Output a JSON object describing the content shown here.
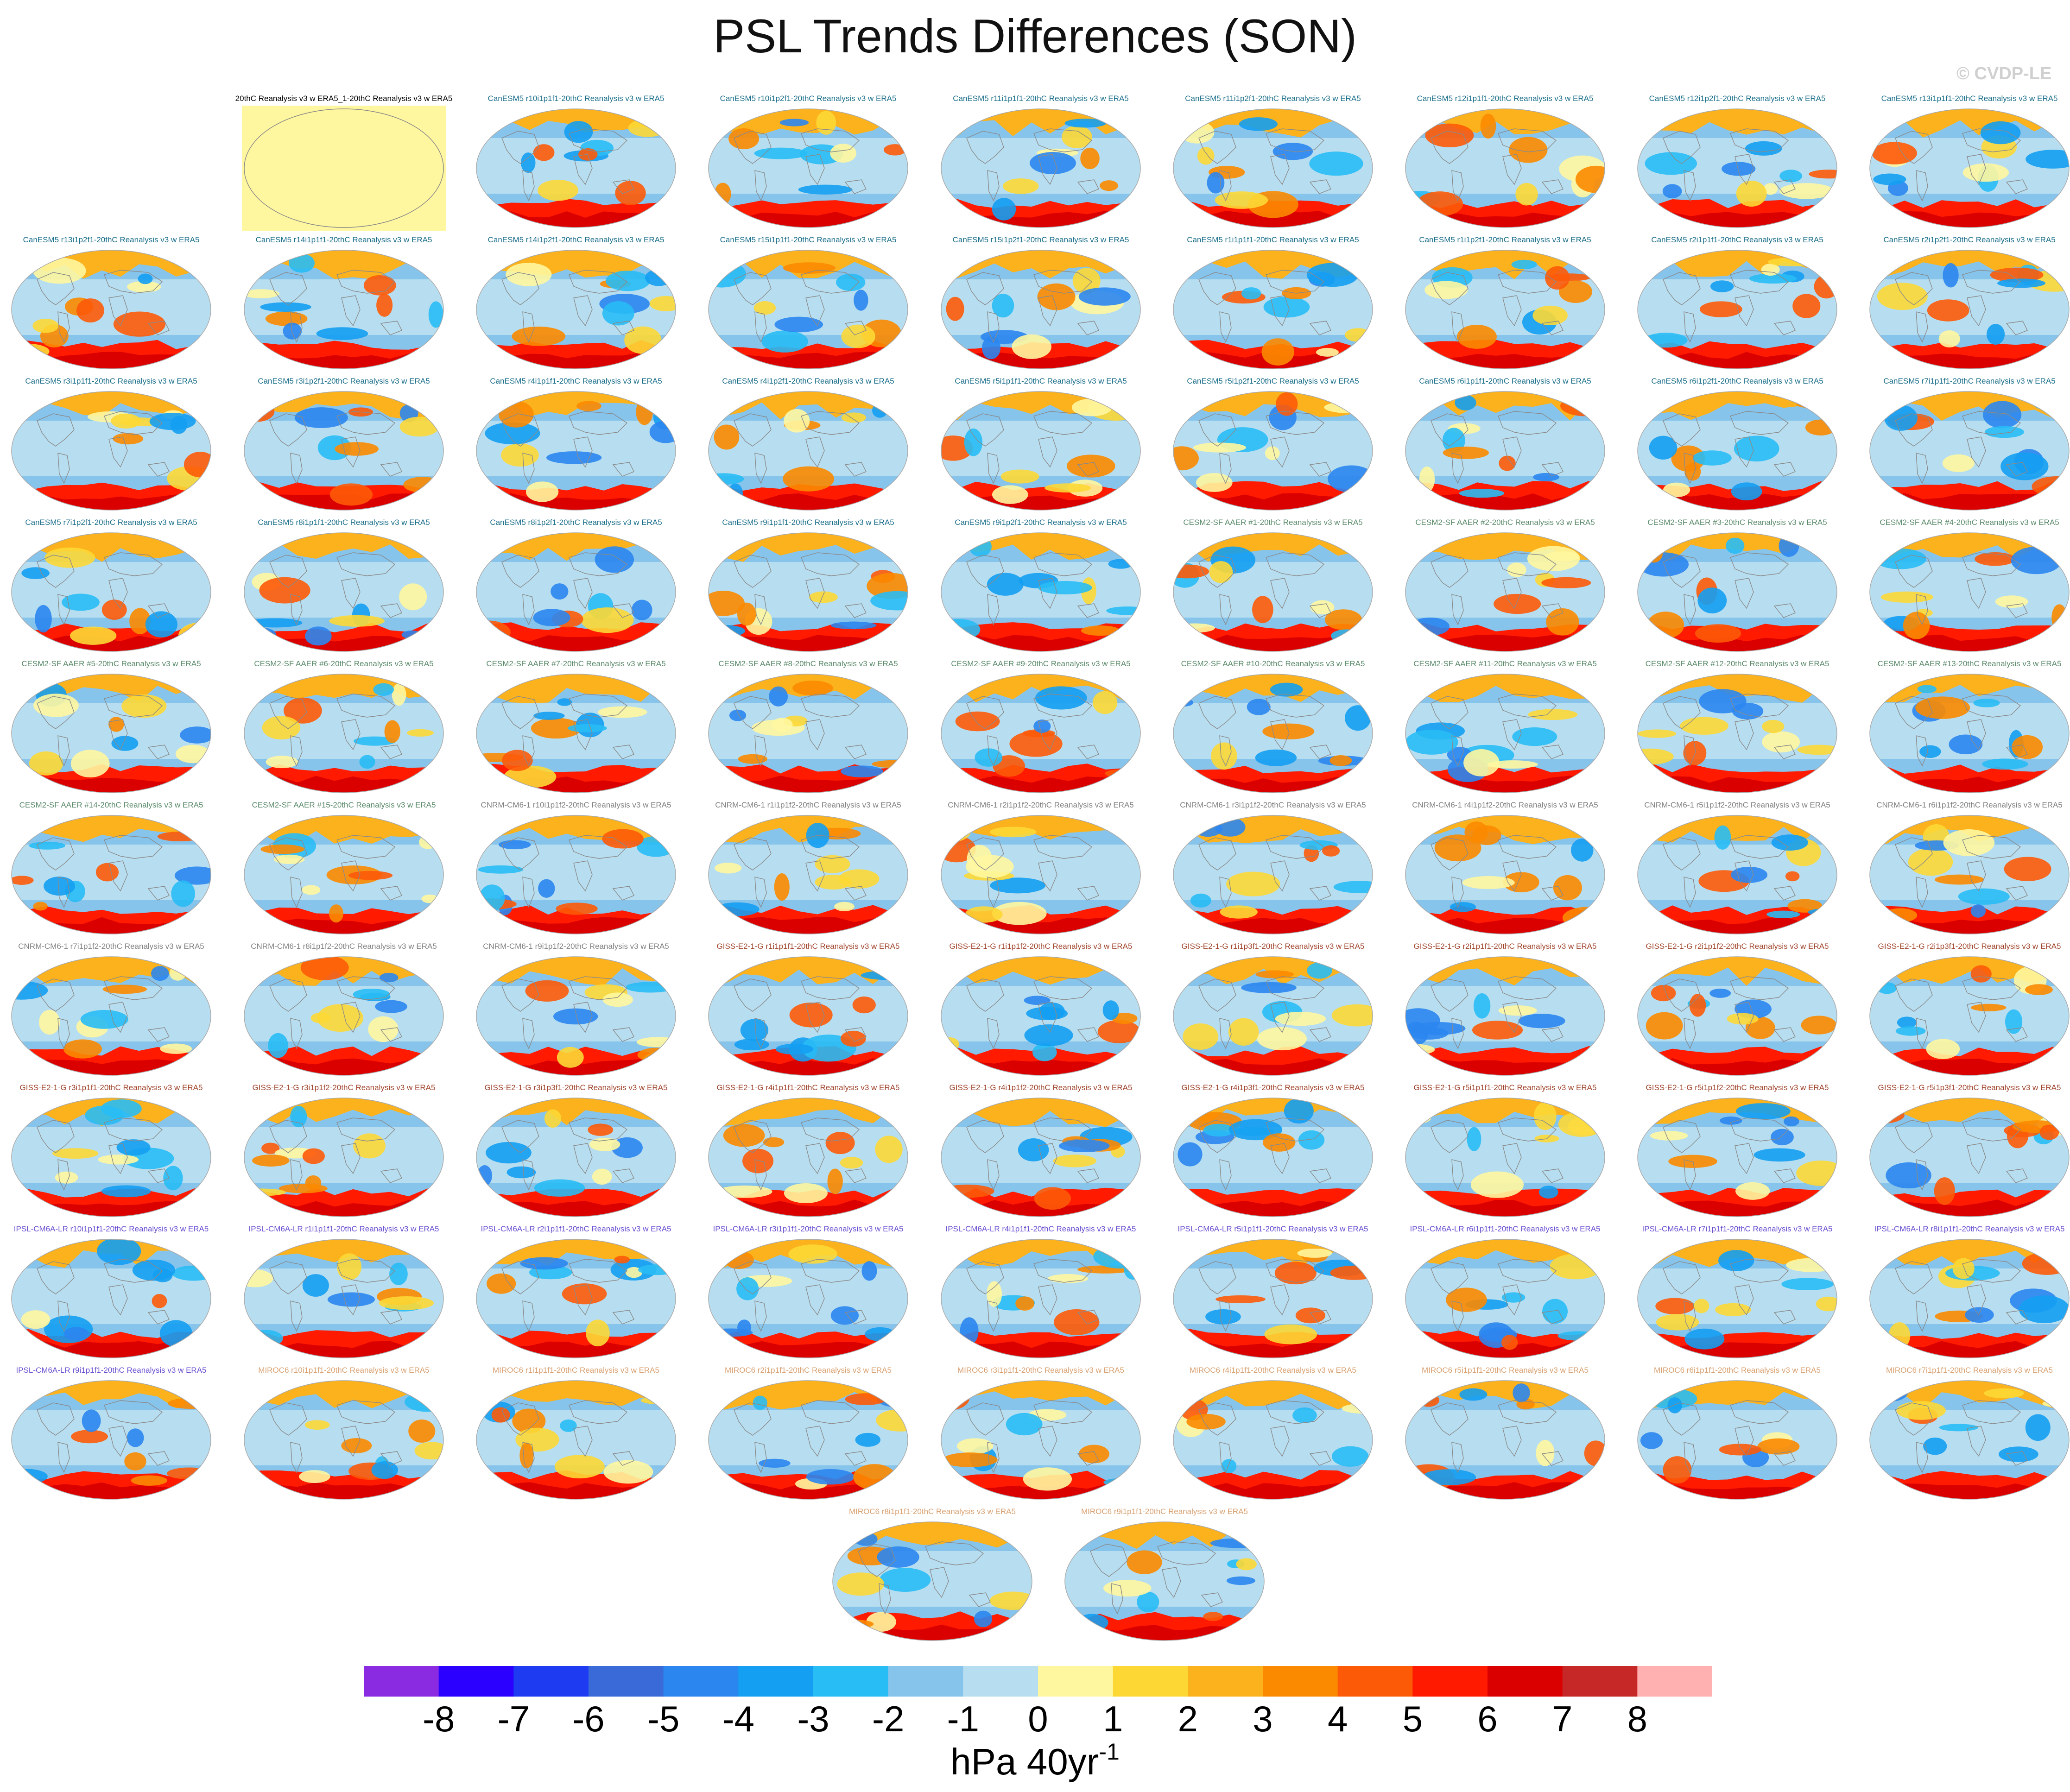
{
  "figure": {
    "title": "PSL Trends Differences (SON)",
    "watermark": "© CVDP-LE",
    "colorbar": {
      "unit_main": "hPa 40yr",
      "unit_exp": "-1",
      "ticks": [
        "-8",
        "-7",
        "-6",
        "-5",
        "-4",
        "-3",
        "-2",
        "-1",
        "0",
        "1",
        "2",
        "3",
        "4",
        "5",
        "6",
        "7",
        "8"
      ],
      "colors": [
        "#8a2be2",
        "#2b00ff",
        "#1f3bf2",
        "#3a6ad8",
        "#2b86f0",
        "#149ff2",
        "#28bdf5",
        "#86c4ec",
        "#b7def0",
        "#fff7a0",
        "#fdd835",
        "#fbb21c",
        "#fb8a00",
        "#fd5a08",
        "#ff1a00",
        "#db0000",
        "#c62828",
        "#ffb0b0"
      ]
    },
    "panels": [
      {
        "label": "20thC Reanalysis v3 w ERA5_1-20thC Reanalysis v3 w ERA5",
        "group": "ref",
        "color": "#000000"
      },
      {
        "label": "CanESM5 r10i1p1f1-20thC Reanalysis v3 w ERA5",
        "group": "CanESM5",
        "color": "#1a6e8a"
      },
      {
        "label": "CanESM5 r10i1p2f1-20thC Reanalysis v3 w ERA5",
        "group": "CanESM5",
        "color": "#1a6e8a"
      },
      {
        "label": "CanESM5 r11i1p1f1-20thC Reanalysis v3 w ERA5",
        "group": "CanESM5",
        "color": "#1a6e8a"
      },
      {
        "label": "CanESM5 r11i1p2f1-20thC Reanalysis v3 w ERA5",
        "group": "CanESM5",
        "color": "#1a6e8a"
      },
      {
        "label": "CanESM5 r12i1p1f1-20thC Reanalysis v3 w ERA5",
        "group": "CanESM5",
        "color": "#1a6e8a"
      },
      {
        "label": "CanESM5 r12i1p2f1-20thC Reanalysis v3 w ERA5",
        "group": "CanESM5",
        "color": "#1a6e8a"
      },
      {
        "label": "CanESM5 r13i1p1f1-20thC Reanalysis v3 w ERA5",
        "group": "CanESM5",
        "color": "#1a6e8a"
      },
      {
        "label": "CanESM5 r13i1p2f1-20thC Reanalysis v3 w ERA5",
        "group": "CanESM5",
        "color": "#1a6e8a"
      },
      {
        "label": "CanESM5 r14i1p1f1-20thC Reanalysis v3 w ERA5",
        "group": "CanESM5",
        "color": "#1a6e8a"
      },
      {
        "label": "CanESM5 r14i1p2f1-20thC Reanalysis v3 w ERA5",
        "group": "CanESM5",
        "color": "#1a6e8a"
      },
      {
        "label": "CanESM5 r15i1p1f1-20thC Reanalysis v3 w ERA5",
        "group": "CanESM5",
        "color": "#1a6e8a"
      },
      {
        "label": "CanESM5 r15i1p2f1-20thC Reanalysis v3 w ERA5",
        "group": "CanESM5",
        "color": "#1a6e8a"
      },
      {
        "label": "CanESM5 r1i1p1f1-20thC Reanalysis v3 w ERA5",
        "group": "CanESM5",
        "color": "#1a6e8a"
      },
      {
        "label": "CanESM5 r1i1p2f1-20thC Reanalysis v3 w ERA5",
        "group": "CanESM5",
        "color": "#1a6e8a"
      },
      {
        "label": "CanESM5 r2i1p1f1-20thC Reanalysis v3 w ERA5",
        "group": "CanESM5",
        "color": "#1a6e8a"
      },
      {
        "label": "CanESM5 r2i1p2f1-20thC Reanalysis v3 w ERA5",
        "group": "CanESM5",
        "color": "#1a6e8a"
      },
      {
        "label": "CanESM5 r3i1p1f1-20thC Reanalysis v3 w ERA5",
        "group": "CanESM5",
        "color": "#1a6e8a"
      },
      {
        "label": "CanESM5 r3i1p2f1-20thC Reanalysis v3 w ERA5",
        "group": "CanESM5",
        "color": "#1a6e8a"
      },
      {
        "label": "CanESM5 r4i1p1f1-20thC Reanalysis v3 w ERA5",
        "group": "CanESM5",
        "color": "#1a6e8a"
      },
      {
        "label": "CanESM5 r4i1p2f1-20thC Reanalysis v3 w ERA5",
        "group": "CanESM5",
        "color": "#1a6e8a"
      },
      {
        "label": "CanESM5 r5i1p1f1-20thC Reanalysis v3 w ERA5",
        "group": "CanESM5",
        "color": "#1a6e8a"
      },
      {
        "label": "CanESM5 r5i1p2f1-20thC Reanalysis v3 w ERA5",
        "group": "CanESM5",
        "color": "#1a6e8a"
      },
      {
        "label": "CanESM5 r6i1p1f1-20thC Reanalysis v3 w ERA5",
        "group": "CanESM5",
        "color": "#1a6e8a"
      },
      {
        "label": "CanESM5 r6i1p2f1-20thC Reanalysis v3 w ERA5",
        "group": "CanESM5",
        "color": "#1a6e8a"
      },
      {
        "label": "CanESM5 r7i1p1f1-20thC Reanalysis v3 w ERA5",
        "group": "CanESM5",
        "color": "#1a6e8a"
      },
      {
        "label": "CanESM5 r7i1p2f1-20thC Reanalysis v3 w ERA5",
        "group": "CanESM5",
        "color": "#1a6e8a"
      },
      {
        "label": "CanESM5 r8i1p1f1-20thC Reanalysis v3 w ERA5",
        "group": "CanESM5",
        "color": "#1a6e8a"
      },
      {
        "label": "CanESM5 r8i1p2f1-20thC Reanalysis v3 w ERA5",
        "group": "CanESM5",
        "color": "#1a6e8a"
      },
      {
        "label": "CanESM5 r9i1p1f1-20thC Reanalysis v3 w ERA5",
        "group": "CanESM5",
        "color": "#1a6e8a"
      },
      {
        "label": "CanESM5 r9i1p2f1-20thC Reanalysis v3 w ERA5",
        "group": "CanESM5",
        "color": "#1a6e8a"
      },
      {
        "label": "CESM2-SF AAER #1-20thC Reanalysis v3 w ERA5",
        "group": "CESM2",
        "color": "#5a8a6a"
      },
      {
        "label": "CESM2-SF AAER #2-20thC Reanalysis v3 w ERA5",
        "group": "CESM2",
        "color": "#5a8a6a"
      },
      {
        "label": "CESM2-SF AAER #3-20thC Reanalysis v3 w ERA5",
        "group": "CESM2",
        "color": "#5a8a6a"
      },
      {
        "label": "CESM2-SF AAER #4-20thC Reanalysis v3 w ERA5",
        "group": "CESM2",
        "color": "#5a8a6a"
      },
      {
        "label": "CESM2-SF AAER #5-20thC Reanalysis v3 w ERA5",
        "group": "CESM2",
        "color": "#5a8a6a"
      },
      {
        "label": "CESM2-SF AAER #6-20thC Reanalysis v3 w ERA5",
        "group": "CESM2",
        "color": "#5a8a6a"
      },
      {
        "label": "CESM2-SF AAER #7-20thC Reanalysis v3 w ERA5",
        "group": "CESM2",
        "color": "#5a8a6a"
      },
      {
        "label": "CESM2-SF AAER #8-20thC Reanalysis v3 w ERA5",
        "group": "CESM2",
        "color": "#5a8a6a"
      },
      {
        "label": "CESM2-SF AAER #9-20thC Reanalysis v3 w ERA5",
        "group": "CESM2",
        "color": "#5a8a6a"
      },
      {
        "label": "CESM2-SF AAER #10-20thC Reanalysis v3 w ERA5",
        "group": "CESM2",
        "color": "#5a8a6a"
      },
      {
        "label": "CESM2-SF AAER #11-20thC Reanalysis v3 w ERA5",
        "group": "CESM2",
        "color": "#5a8a6a"
      },
      {
        "label": "CESM2-SF AAER #12-20thC Reanalysis v3 w ERA5",
        "group": "CESM2",
        "color": "#5a8a6a"
      },
      {
        "label": "CESM2-SF AAER #13-20thC Reanalysis v3 w ERA5",
        "group": "CESM2",
        "color": "#5a8a6a"
      },
      {
        "label": "CESM2-SF AAER #14-20thC Reanalysis v3 w ERA5",
        "group": "CESM2",
        "color": "#5a8a6a"
      },
      {
        "label": "CESM2-SF AAER #15-20thC Reanalysis v3 w ERA5",
        "group": "CESM2",
        "color": "#5a8a6a"
      },
      {
        "label": "CNRM-CM6-1 r10i1p1f2-20thC Reanalysis v3 w ERA5",
        "group": "CNRM",
        "color": "#808080"
      },
      {
        "label": "CNRM-CM6-1 r1i1p1f2-20thC Reanalysis v3 w ERA5",
        "group": "CNRM",
        "color": "#808080"
      },
      {
        "label": "CNRM-CM6-1 r2i1p1f2-20thC Reanalysis v3 w ERA5",
        "group": "CNRM",
        "color": "#808080"
      },
      {
        "label": "CNRM-CM6-1 r3i1p1f2-20thC Reanalysis v3 w ERA5",
        "group": "CNRM",
        "color": "#808080"
      },
      {
        "label": "CNRM-CM6-1 r4i1p1f2-20thC Reanalysis v3 w ERA5",
        "group": "CNRM",
        "color": "#808080"
      },
      {
        "label": "CNRM-CM6-1 r5i1p1f2-20thC Reanalysis v3 w ERA5",
        "group": "CNRM",
        "color": "#808080"
      },
      {
        "label": "CNRM-CM6-1 r6i1p1f2-20thC Reanalysis v3 w ERA5",
        "group": "CNRM",
        "color": "#808080"
      },
      {
        "label": "CNRM-CM6-1 r7i1p1f2-20thC Reanalysis v3 w ERA5",
        "group": "CNRM",
        "color": "#808080"
      },
      {
        "label": "CNRM-CM6-1 r8i1p1f2-20thC Reanalysis v3 w ERA5",
        "group": "CNRM",
        "color": "#808080"
      },
      {
        "label": "CNRM-CM6-1 r9i1p1f2-20thC Reanalysis v3 w ERA5",
        "group": "CNRM",
        "color": "#808080"
      },
      {
        "label": "GISS-E2-1-G r1i1p1f1-20thC Reanalysis v3 w ERA5",
        "group": "GISS",
        "color": "#a0432a"
      },
      {
        "label": "GISS-E2-1-G r1i1p1f2-20thC Reanalysis v3 w ERA5",
        "group": "GISS",
        "color": "#a0432a"
      },
      {
        "label": "GISS-E2-1-G r1i1p3f1-20thC Reanalysis v3 w ERA5",
        "group": "GISS",
        "color": "#a0432a"
      },
      {
        "label": "GISS-E2-1-G r2i1p1f1-20thC Reanalysis v3 w ERA5",
        "group": "GISS",
        "color": "#a0432a"
      },
      {
        "label": "GISS-E2-1-G r2i1p1f2-20thC Reanalysis v3 w ERA5",
        "group": "GISS",
        "color": "#a0432a"
      },
      {
        "label": "GISS-E2-1-G r2i1p3f1-20thC Reanalysis v3 w ERA5",
        "group": "GISS",
        "color": "#a0432a"
      },
      {
        "label": "GISS-E2-1-G r3i1p1f1-20thC Reanalysis v3 w ERA5",
        "group": "GISS",
        "color": "#a0432a"
      },
      {
        "label": "GISS-E2-1-G r3i1p1f2-20thC Reanalysis v3 w ERA5",
        "group": "GISS",
        "color": "#a0432a"
      },
      {
        "label": "GISS-E2-1-G r3i1p3f1-20thC Reanalysis v3 w ERA5",
        "group": "GISS",
        "color": "#a0432a"
      },
      {
        "label": "GISS-E2-1-G r4i1p1f1-20thC Reanalysis v3 w ERA5",
        "group": "GISS",
        "color": "#a0432a"
      },
      {
        "label": "GISS-E2-1-G r4i1p1f2-20thC Reanalysis v3 w ERA5",
        "group": "GISS",
        "color": "#a0432a"
      },
      {
        "label": "GISS-E2-1-G r4i1p3f1-20thC Reanalysis v3 w ERA5",
        "group": "GISS",
        "color": "#a0432a"
      },
      {
        "label": "GISS-E2-1-G r5i1p1f1-20thC Reanalysis v3 w ERA5",
        "group": "GISS",
        "color": "#a0432a"
      },
      {
        "label": "GISS-E2-1-G r5i1p1f2-20thC Reanalysis v3 w ERA5",
        "group": "GISS",
        "color": "#a0432a"
      },
      {
        "label": "GISS-E2-1-G r5i1p3f1-20thC Reanalysis v3 w ERA5",
        "group": "GISS",
        "color": "#a0432a"
      },
      {
        "label": "IPSL-CM6A-LR r10i1p1f1-20thC Reanalysis v3 w ERA5",
        "group": "IPSL",
        "color": "#6a4fd0"
      },
      {
        "label": "IPSL-CM6A-LR r1i1p1f1-20thC Reanalysis v3 w ERA5",
        "group": "IPSL",
        "color": "#6a4fd0"
      },
      {
        "label": "IPSL-CM6A-LR r2i1p1f1-20thC Reanalysis v3 w ERA5",
        "group": "IPSL",
        "color": "#6a4fd0"
      },
      {
        "label": "IPSL-CM6A-LR r3i1p1f1-20thC Reanalysis v3 w ERA5",
        "group": "IPSL",
        "color": "#6a4fd0"
      },
      {
        "label": "IPSL-CM6A-LR r4i1p1f1-20thC Reanalysis v3 w ERA5",
        "group": "IPSL",
        "color": "#6a4fd0"
      },
      {
        "label": "IPSL-CM6A-LR r5i1p1f1-20thC Reanalysis v3 w ERA5",
        "group": "IPSL",
        "color": "#6a4fd0"
      },
      {
        "label": "IPSL-CM6A-LR r6i1p1f1-20thC Reanalysis v3 w ERA5",
        "group": "IPSL",
        "color": "#6a4fd0"
      },
      {
        "label": "IPSL-CM6A-LR r7i1p1f1-20thC Reanalysis v3 w ERA5",
        "group": "IPSL",
        "color": "#6a4fd0"
      },
      {
        "label": "IPSL-CM6A-LR r8i1p1f1-20thC Reanalysis v3 w ERA5",
        "group": "IPSL",
        "color": "#6a4fd0"
      },
      {
        "label": "IPSL-CM6A-LR r9i1p1f1-20thC Reanalysis v3 w ERA5",
        "group": "IPSL",
        "color": "#6a4fd0"
      },
      {
        "label": "MIROC6 r10i1p1f1-20thC Reanalysis v3 w ERA5",
        "group": "MIROC6",
        "color": "#d9a070"
      },
      {
        "label": "MIROC6 r1i1p1f1-20thC Reanalysis v3 w ERA5",
        "group": "MIROC6",
        "color": "#d9a070"
      },
      {
        "label": "MIROC6 r2i1p1f1-20thC Reanalysis v3 w ERA5",
        "group": "MIROC6",
        "color": "#d9a070"
      },
      {
        "label": "MIROC6 r3i1p1f1-20thC Reanalysis v3 w ERA5",
        "group": "MIROC6",
        "color": "#d9a070"
      },
      {
        "label": "MIROC6 r4i1p1f1-20thC Reanalysis v3 w ERA5",
        "group": "MIROC6",
        "color": "#d9a070"
      },
      {
        "label": "MIROC6 r5i1p1f1-20thC Reanalysis v3 w ERA5",
        "group": "MIROC6",
        "color": "#d9a070"
      },
      {
        "label": "MIROC6 r6i1p1f1-20thC Reanalysis v3 w ERA5",
        "group": "MIROC6",
        "color": "#d9a070"
      },
      {
        "label": "MIROC6 r7i1p1f1-20thC Reanalysis v3 w ERA5",
        "group": "MIROC6",
        "color": "#d9a070"
      },
      {
        "label": "MIROC6 r8i1p1f1-20thC Reanalysis v3 w ERA5",
        "group": "MIROC6",
        "color": "#d9a070"
      },
      {
        "label": "MIROC6 r9i1p1f1-20thC Reanalysis v3 w ERA5",
        "group": "MIROC6",
        "color": "#d9a070"
      }
    ]
  }
}
